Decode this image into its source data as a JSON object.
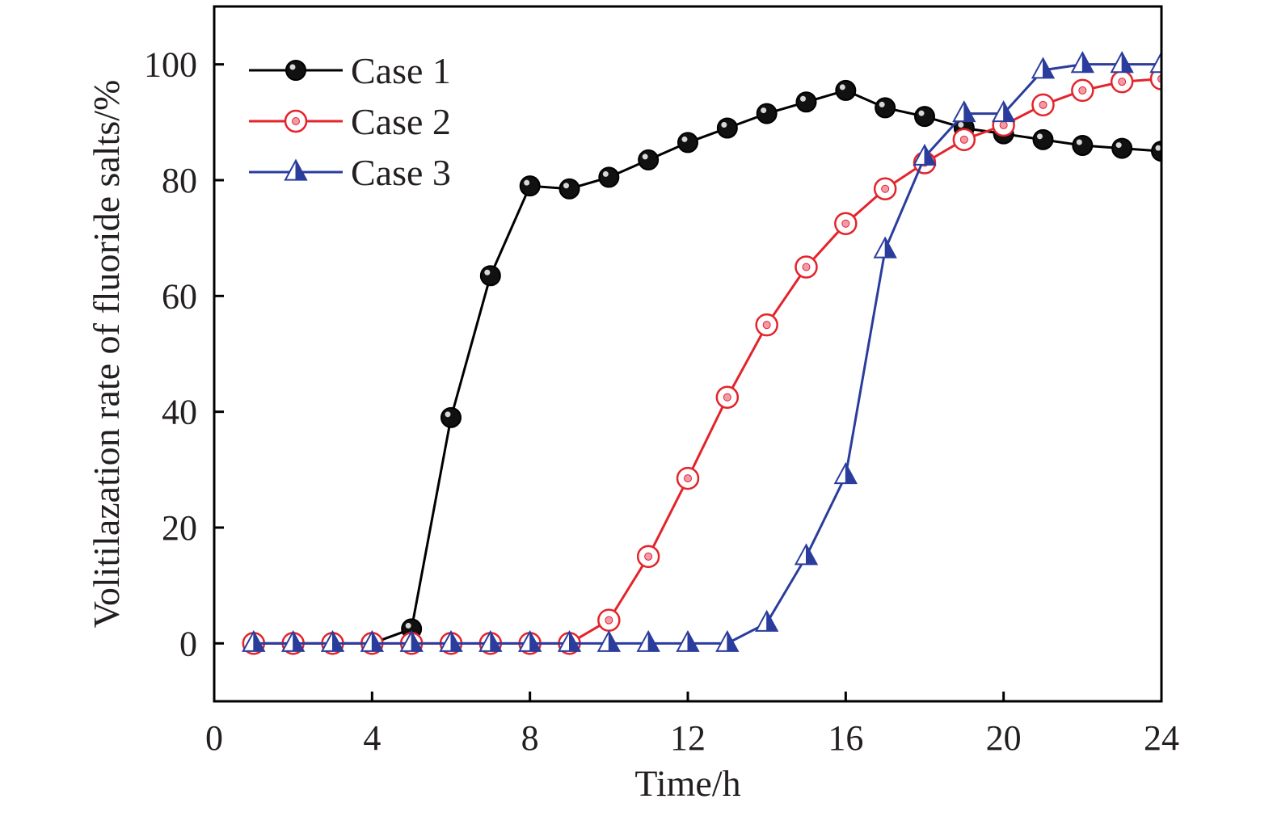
{
  "chart_data": {
    "type": "line",
    "title": "",
    "xlabel": "Time/h",
    "ylabel": "Volitilazation rate of fluoride salts/%",
    "xlim": [
      0,
      24
    ],
    "ylim": [
      -10,
      110
    ],
    "xticks": [
      0,
      4,
      8,
      12,
      16,
      20,
      24
    ],
    "yticks": [
      0,
      20,
      40,
      60,
      80,
      100
    ],
    "grid": false,
    "legend_position": "top-left",
    "x": [
      1,
      2,
      3,
      4,
      5,
      6,
      7,
      8,
      9,
      10,
      11,
      12,
      13,
      14,
      15,
      16,
      17,
      18,
      19,
      20,
      21,
      22,
      23,
      24
    ],
    "series": [
      {
        "name": "Case 1",
        "color": "#000000",
        "marker": "filled-circle",
        "values": [
          0,
          0,
          0,
          0,
          2.5,
          39,
          63.5,
          79,
          78.5,
          80.5,
          83.5,
          86.5,
          89,
          91.5,
          93.5,
          95.5,
          92.5,
          91,
          89,
          88,
          87,
          86,
          85.5,
          85
        ]
      },
      {
        "name": "Case 2",
        "color": "#e3242b",
        "marker": "open-circle",
        "values": [
          0,
          0,
          0,
          0,
          0,
          0,
          0,
          0,
          0,
          4,
          15,
          28.5,
          42.5,
          55,
          65,
          72.5,
          78.5,
          83,
          87,
          89.5,
          93,
          95.5,
          97,
          97.5
        ]
      },
      {
        "name": "Case 3",
        "color": "#2b3d9c",
        "marker": "half-filled-triangle",
        "values": [
          0,
          0,
          0,
          0,
          0,
          0,
          0,
          0,
          0,
          0,
          0,
          0,
          0,
          3.5,
          15,
          29,
          68,
          84,
          91.5,
          91.5,
          99,
          100,
          100,
          100
        ]
      }
    ]
  }
}
